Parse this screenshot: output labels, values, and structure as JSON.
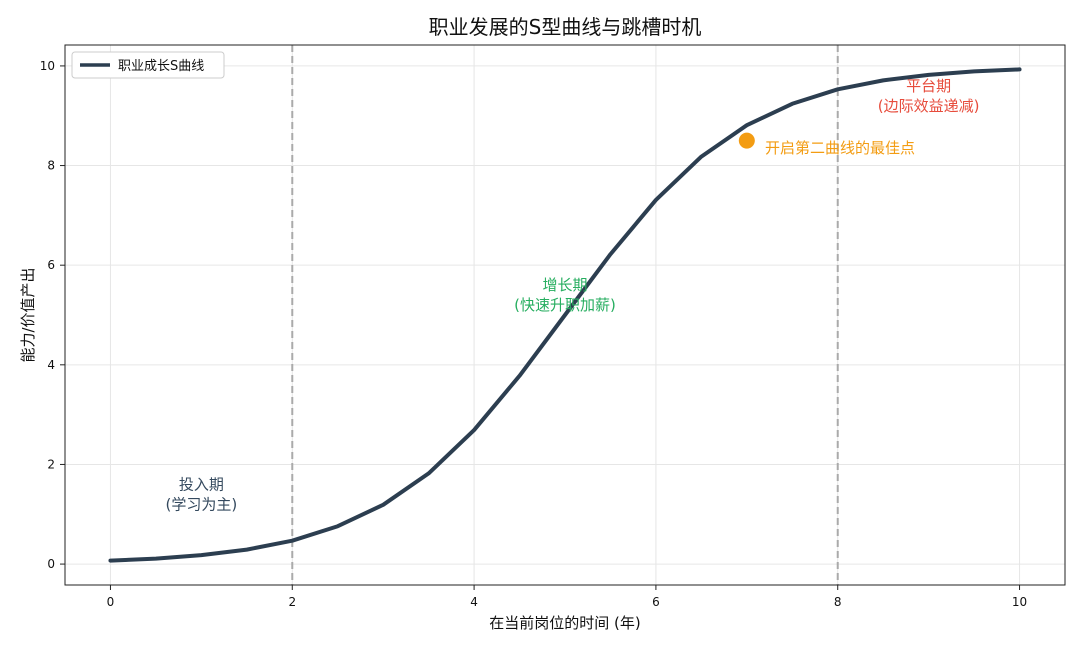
{
  "chart_data": {
    "type": "line",
    "title": "职业发展的S型曲线与跳槽时机",
    "xlabel": "在当前岗位的时间 (年)",
    "ylabel": "能力/价值产出",
    "xlim": [
      -0.5,
      10.5
    ],
    "ylim": [
      -0.42,
      10.42
    ],
    "xticks": [
      0,
      2,
      4,
      6,
      8,
      10
    ],
    "yticks": [
      0,
      2,
      4,
      6,
      8,
      10
    ],
    "grid": true,
    "legend_position": "top-left",
    "series": [
      {
        "name": "职业成长S曲线",
        "color": "#2c3e50",
        "x": [
          0,
          0.5,
          1,
          1.5,
          2,
          2.5,
          3,
          3.5,
          4,
          4.5,
          5,
          5.5,
          6,
          6.5,
          7,
          7.5,
          8,
          8.5,
          9,
          9.5,
          10
        ],
        "y": [
          0.07,
          0.11,
          0.18,
          0.29,
          0.47,
          0.76,
          1.19,
          1.82,
          2.69,
          3.78,
          5.0,
          6.22,
          7.31,
          8.18,
          8.81,
          9.24,
          9.53,
          9.71,
          9.82,
          9.89,
          9.93
        ]
      }
    ],
    "vlines": [
      {
        "x": 2,
        "color": "#aaaaaa"
      },
      {
        "x": 8,
        "color": "#aaaaaa"
      }
    ],
    "point": {
      "x": 7,
      "y": 8.5,
      "color": "#f39c12"
    },
    "annotations": [
      {
        "lines": [
          "投入期",
          "(学习为主)"
        ],
        "x": 1,
        "y": 1.3,
        "color": "#34495e"
      },
      {
        "lines": [
          "增长期",
          "(快速升职加薪)"
        ],
        "x": 5,
        "y": 5.3,
        "color": "#27ae60"
      },
      {
        "lines": [
          "平台期",
          "(边际效益递减)"
        ],
        "x": 9,
        "y": 9.3,
        "color": "#e74c3c"
      },
      {
        "lines": [
          "开启第二曲线的最佳点"
        ],
        "x": 7.2,
        "y": 8.25,
        "color": "#f39c12",
        "anchor": "start"
      }
    ]
  }
}
